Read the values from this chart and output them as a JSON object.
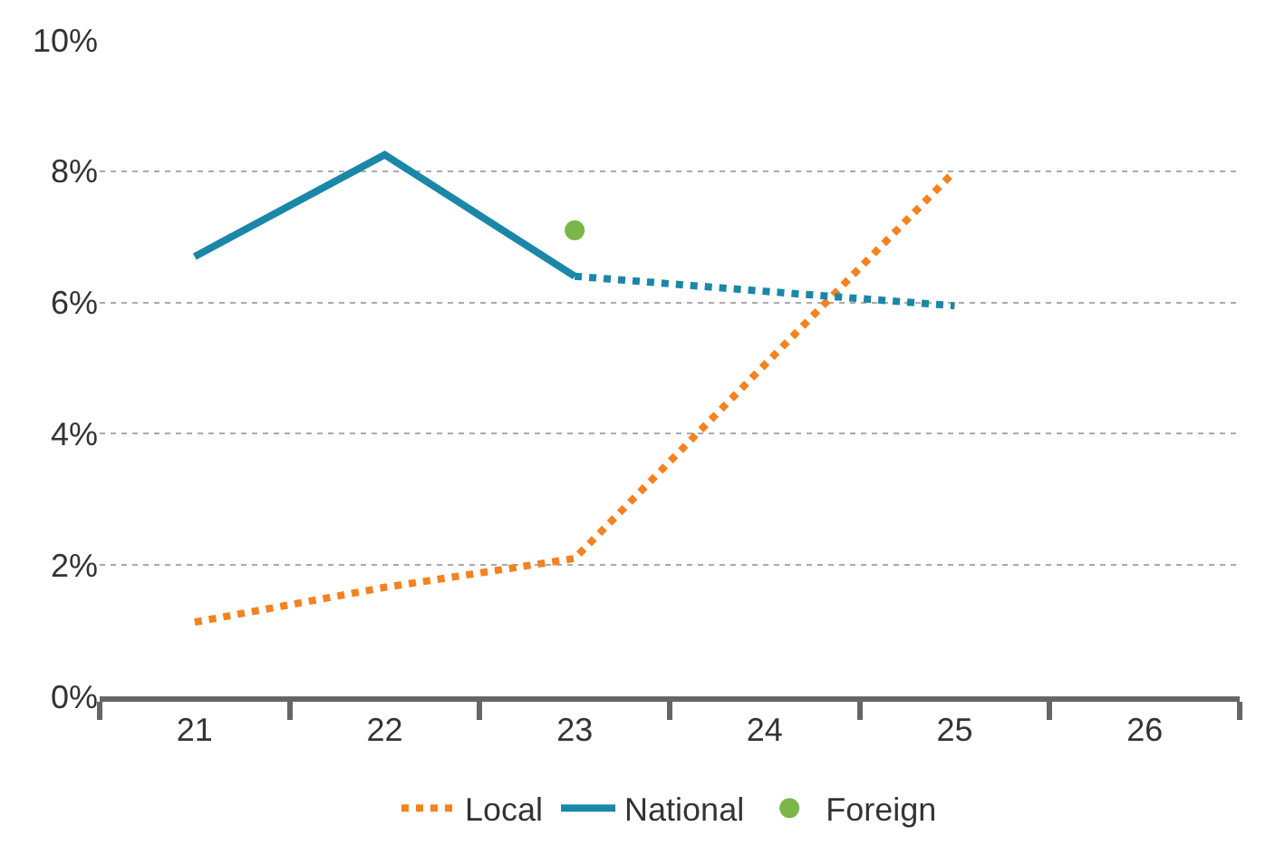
{
  "chart_data": {
    "type": "line",
    "categories": [
      "21",
      "22",
      "23",
      "24",
      "25",
      "26"
    ],
    "series": [
      {
        "name": "Local",
        "color": "#f58220",
        "line_style": "dotted",
        "values": [
          1.13,
          1.66,
          2.1,
          5.05,
          8.0,
          null
        ]
      },
      {
        "name": "National",
        "color": "#1b87a8",
        "line_style": "solid",
        "values": [
          6.7,
          8.25,
          6.4,
          null,
          null,
          null
        ]
      },
      {
        "color": "#1b87a8",
        "line_style": "dotted",
        "values": [
          null,
          null,
          6.4,
          6.17,
          5.95,
          null
        ]
      },
      {
        "name": "Foreign",
        "color": "#7ab648",
        "type": "scatter",
        "marker": "circle",
        "values": [
          null,
          null,
          7.1,
          null,
          null,
          null
        ]
      }
    ],
    "ylim": [
      0,
      10
    ],
    "yticks": [
      {
        "value": 0,
        "label": "0%"
      },
      {
        "value": 2,
        "label": "2%"
      },
      {
        "value": 4,
        "label": "4%"
      },
      {
        "value": 6,
        "label": "6%"
      },
      {
        "value": 8,
        "label": "8%"
      },
      {
        "value": 10,
        "label": "10%"
      }
    ],
    "grid": "y",
    "legend": "bottom",
    "marker": "none"
  }
}
